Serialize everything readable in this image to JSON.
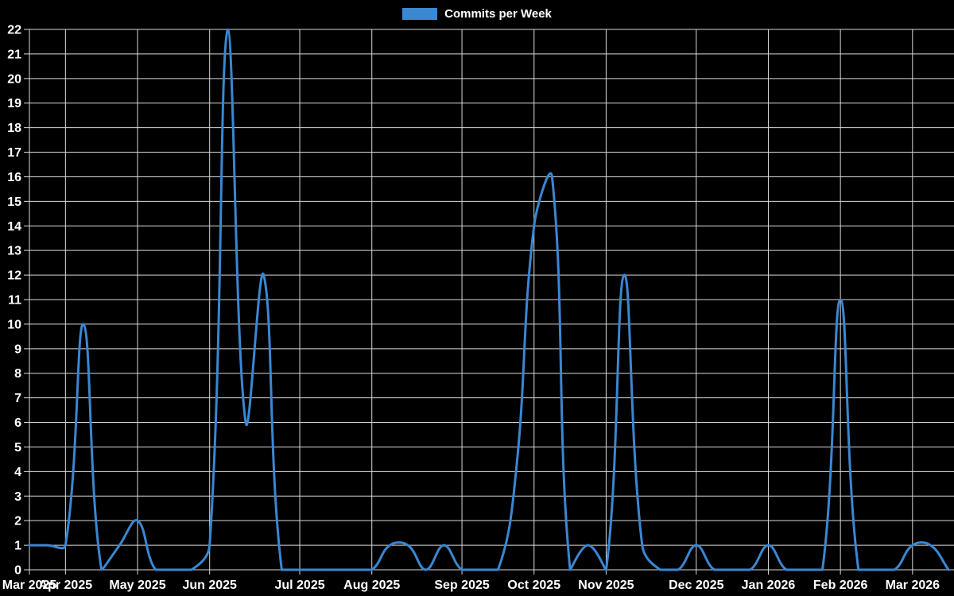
{
  "chart_data": {
    "type": "line",
    "title": "",
    "legend": "Commits per Week",
    "series": [
      {
        "name": "Commits per Week",
        "x_unit": "week",
        "values": [
          1,
          1,
          1,
          10,
          0,
          1,
          2,
          0,
          0,
          0,
          1,
          22,
          6,
          12,
          0,
          0,
          0,
          0,
          0,
          0,
          1,
          1,
          0,
          1,
          0,
          0,
          0,
          4,
          14,
          16,
          0,
          1,
          0,
          12,
          1,
          0,
          0,
          1,
          0,
          0,
          0,
          1,
          0,
          0,
          0,
          11,
          0,
          0,
          0,
          1,
          1,
          0
        ]
      }
    ],
    "month_ticks": [
      {
        "label": "Mar 2025",
        "week": 0
      },
      {
        "label": "Apr 2025",
        "week": 2
      },
      {
        "label": "May 2025",
        "week": 6
      },
      {
        "label": "Jun 2025",
        "week": 10
      },
      {
        "label": "Jul 2025",
        "week": 15
      },
      {
        "label": "Aug 2025",
        "week": 19
      },
      {
        "label": "Sep 2025",
        "week": 24
      },
      {
        "label": "Oct 2025",
        "week": 28
      },
      {
        "label": "Nov 2025",
        "week": 32
      },
      {
        "label": "Dec 2025",
        "week": 37
      },
      {
        "label": "Jan 2026",
        "week": 41
      },
      {
        "label": "Feb 2026",
        "week": 45
      },
      {
        "label": "Mar 2026",
        "week": 49
      }
    ],
    "y_ticks": [
      0,
      1,
      2,
      3,
      4,
      5,
      6,
      7,
      8,
      9,
      10,
      11,
      12,
      13,
      14,
      15,
      16,
      17,
      18,
      19,
      20,
      21,
      22
    ],
    "ylim": [
      0,
      22
    ],
    "grid": true,
    "legend_position": "top-center",
    "colors": {
      "line": "#3a87d2",
      "legend_swatch": "#3a87d2",
      "background": "#000000",
      "grid": "#d9d9d9",
      "text": "#ffffff"
    }
  }
}
